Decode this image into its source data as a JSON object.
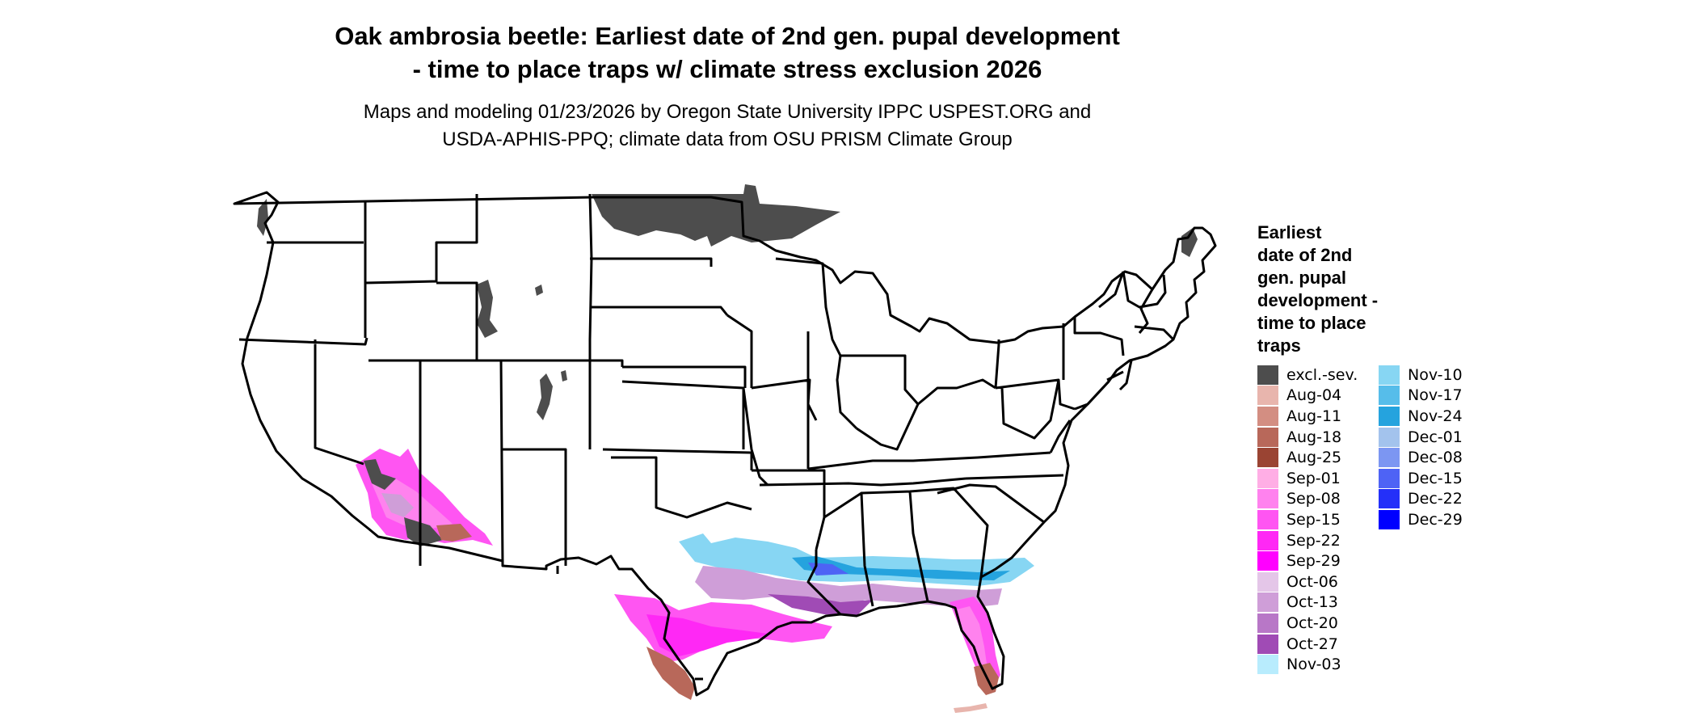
{
  "title": {
    "line1": "Oak ambrosia beetle: Earliest date of 2nd gen. pupal development",
    "line2": "- time to place traps w/ climate stress exclusion 2026"
  },
  "subtitle": {
    "line1": "Maps and modeling 01/23/2026 by Oregon State University IPPC USPEST.ORG and",
    "line2": "USDA-APHIS-PPQ; climate data from OSU PRISM Climate Group"
  },
  "legend": {
    "title_lines": [
      "Earliest",
      "date of 2nd",
      "gen. pupal",
      "development -",
      "time to place",
      "traps"
    ],
    "items": [
      {
        "label": "excl.-sev.",
        "color": "#4d4d4d"
      },
      {
        "label": "Aug-04",
        "color": "#e8b5ad"
      },
      {
        "label": "Aug-11",
        "color": "#d38e82"
      },
      {
        "label": "Aug-18",
        "color": "#b8685a"
      },
      {
        "label": "Aug-25",
        "color": "#9a4433"
      },
      {
        "label": "Sep-01",
        "color": "#ffaee5"
      },
      {
        "label": "Sep-08",
        "color": "#ff82ee"
      },
      {
        "label": "Sep-15",
        "color": "#ff55f2"
      },
      {
        "label": "Sep-22",
        "color": "#ff28f5"
      },
      {
        "label": "Sep-29",
        "color": "#ff00ff"
      },
      {
        "label": "Oct-06",
        "color": "#e4c6e8"
      },
      {
        "label": "Oct-13",
        "color": "#cf9ed8"
      },
      {
        "label": "Oct-20",
        "color": "#b877c7"
      },
      {
        "label": "Oct-27",
        "color": "#a04bb5"
      },
      {
        "label": "Nov-03",
        "color": "#b8ecfd"
      },
      {
        "label": "Nov-10",
        "color": "#87d6f3"
      },
      {
        "label": "Nov-17",
        "color": "#56bdea"
      },
      {
        "label": "Nov-24",
        "color": "#25a3de"
      },
      {
        "label": "Dec-01",
        "color": "#a3c3ed"
      },
      {
        "label": "Dec-08",
        "color": "#7c96f2"
      },
      {
        "label": "Dec-15",
        "color": "#4e63f5"
      },
      {
        "label": "Dec-22",
        "color": "#2430f9"
      },
      {
        "label": "Dec-29",
        "color": "#0000ff"
      }
    ]
  },
  "map": {
    "state_border_color": "#000000",
    "excluded_color": "#4d4d4d"
  }
}
